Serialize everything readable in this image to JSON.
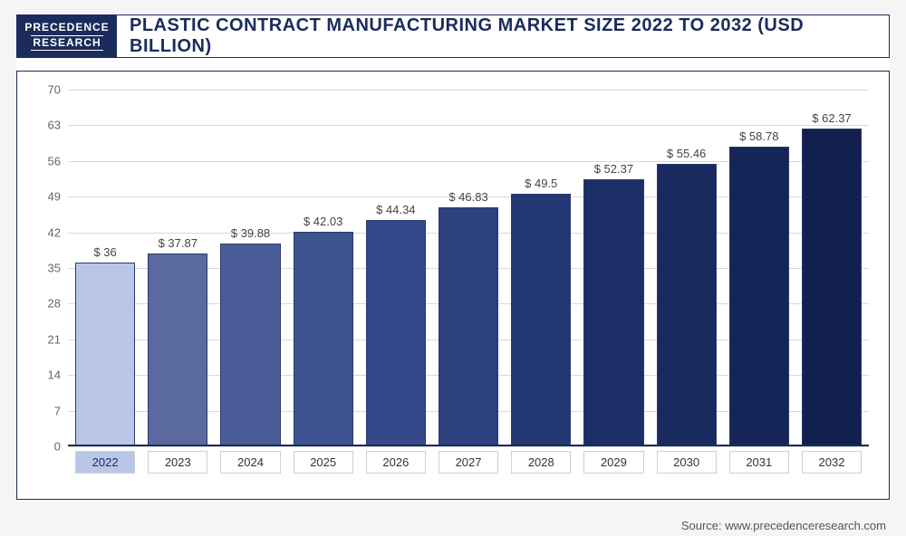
{
  "logo": {
    "line1": "PRECEDENCE",
    "line2": "RESEARCH"
  },
  "title": "PLASTIC CONTRACT MANUFACTURING MARKET SIZE 2022 TO 2032 (USD BILLION)",
  "source": "Source: www.precedenceresearch.com",
  "chart": {
    "type": "bar",
    "ylim": [
      0,
      70
    ],
    "ytick_step": 7,
    "yticks": [
      0,
      7,
      14,
      21,
      28,
      35,
      42,
      49,
      56,
      63,
      70
    ],
    "categories": [
      "2022",
      "2023",
      "2024",
      "2025",
      "2026",
      "2027",
      "2028",
      "2029",
      "2030",
      "2031",
      "2032"
    ],
    "values": [
      36,
      37.87,
      39.88,
      42.03,
      44.34,
      46.83,
      49.5,
      52.37,
      55.46,
      58.78,
      62.37
    ],
    "value_labels": [
      "$ 36",
      "$ 37.87",
      "$ 39.88",
      "$ 42.03",
      "$ 44.34",
      "$ 46.83",
      "$ 49.5",
      "$ 52.37",
      "$ 55.46",
      "$ 58.78",
      "$ 62.37"
    ],
    "bar_colors": [
      "#b9c6e8",
      "#5a6aa0",
      "#4a5c98",
      "#3e5392",
      "#35498a",
      "#2d4080",
      "#233772",
      "#1b2e66",
      "#182a60",
      "#152558",
      "#122050"
    ],
    "bar_border": "#2a3a6a",
    "grid_color": "#d8d8d8",
    "axis_font_color": "#666666",
    "value_font_color": "#444444",
    "background_color": "#ffffff",
    "highlight_category_index": 0,
    "label_fontsize": 13,
    "title_fontsize": 20,
    "title_color": "#1a2b5c"
  }
}
